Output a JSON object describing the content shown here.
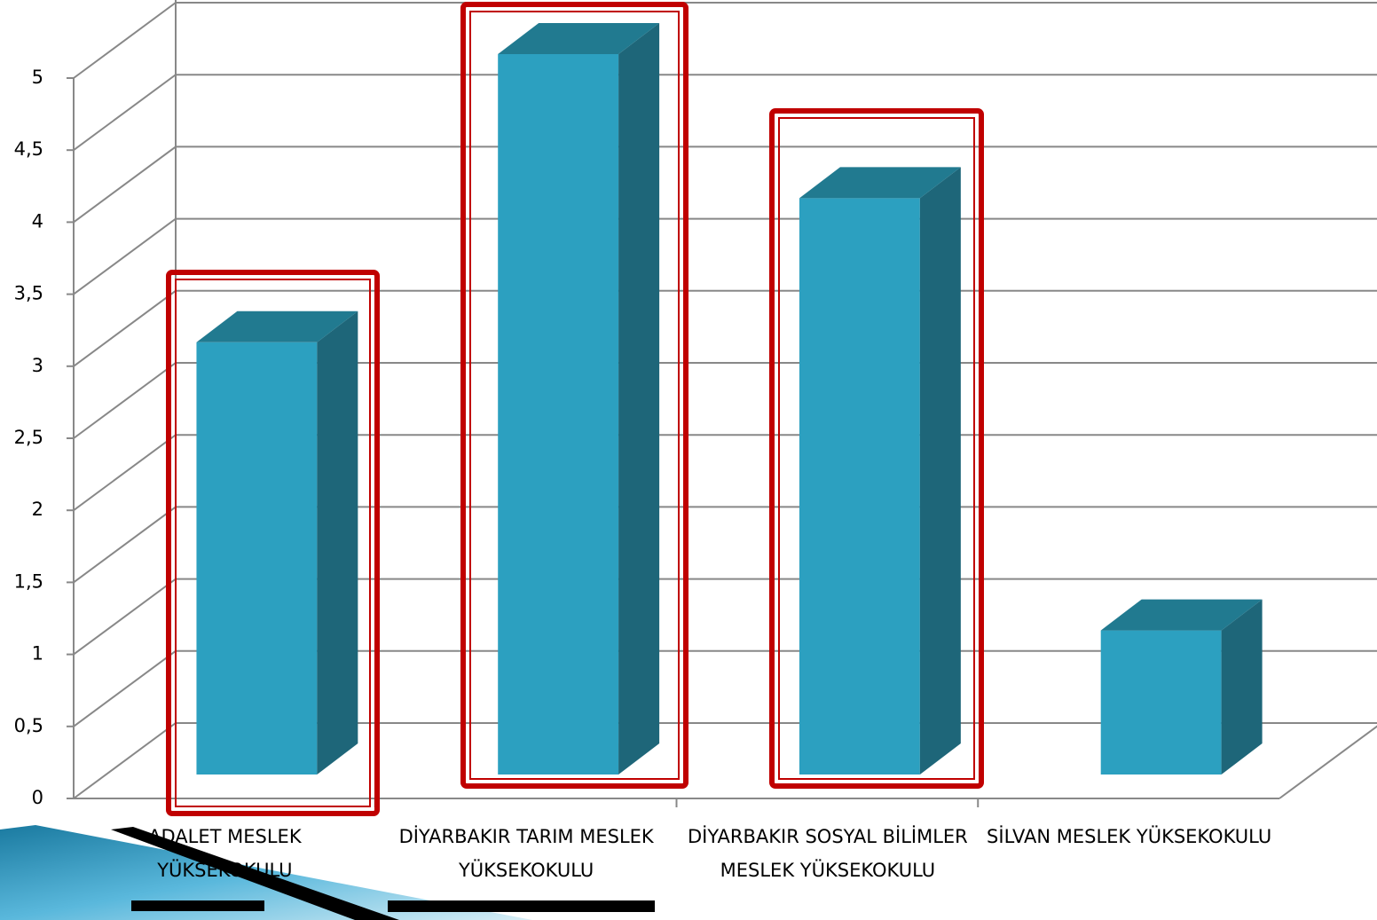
{
  "chart_data": {
    "type": "bar3d",
    "categories": [
      "ADALET MESLEK YÜKSEKOKULU",
      "DİYARBAKIR TARIM MESLEK YÜKSEKOKULU",
      "DİYARBAKIR SOSYAL BİLİMLER MESLEK YÜKSEKOKULU",
      "SİLVAN MESLEK YÜKSEKOKULU"
    ],
    "values": [
      3,
      5,
      4,
      1
    ],
    "color": "#2ca0c0",
    "ylim": [
      0,
      5
    ],
    "yticks": [
      0,
      {
        "value": 0.5,
        "label": "0,5"
      },
      1,
      {
        "value": 1.5,
        "label": "1,5"
      },
      2,
      {
        "value": 2.5,
        "label": "2,5"
      },
      3,
      {
        "value": 3.5,
        "label": "3,5"
      },
      4,
      {
        "value": 4.5,
        "label": "4,5"
      },
      5
    ],
    "grid": true
  }
}
